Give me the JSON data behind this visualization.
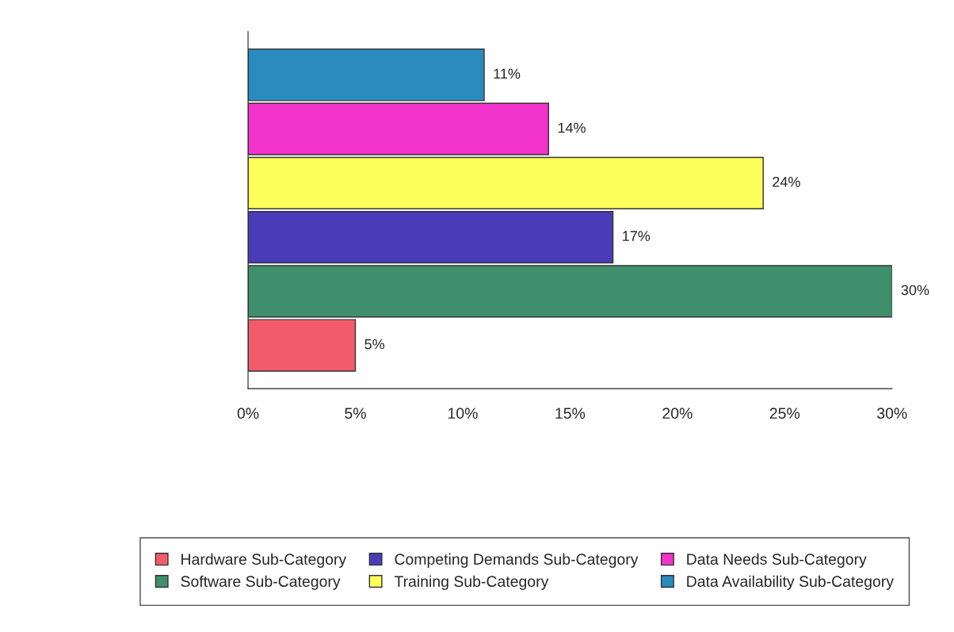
{
  "chart_data": {
    "type": "bar",
    "orientation": "horizontal",
    "categories": [
      null
    ],
    "series": [
      {
        "name": "Hardware Sub-Category",
        "color": "#f25c6a",
        "values": [
          5
        ],
        "value_labels": [
          "5%"
        ]
      },
      {
        "name": "Software Sub-Category",
        "color": "#3f8f6c",
        "values": [
          30
        ],
        "value_labels": [
          "30%"
        ]
      },
      {
        "name": "Competing Demands Sub-Category",
        "color": "#4a3cb8",
        "values": [
          17
        ],
        "value_labels": [
          "17%"
        ]
      },
      {
        "name": "Training Sub-Category",
        "color": "#ffff5a",
        "values": [
          24
        ],
        "value_labels": [
          "24%"
        ]
      },
      {
        "name": "Data Needs Sub-Category",
        "color": "#f233cc",
        "values": [
          14
        ],
        "value_labels": [
          "14%"
        ]
      },
      {
        "name": "Data Availability Sub-Category",
        "color": "#2a8bbf",
        "values": [
          11
        ],
        "value_labels": [
          "11%"
        ]
      }
    ],
    "xlim": [
      0,
      30
    ],
    "xticks": [
      {
        "value": 0,
        "label": "0%"
      },
      {
        "value": 5,
        "label": "5%"
      },
      {
        "value": 10,
        "label": "10%"
      },
      {
        "value": 15,
        "label": "15%"
      },
      {
        "value": 20,
        "label": "20%"
      },
      {
        "value": 25,
        "label": "25%"
      },
      {
        "value": 30,
        "label": "30%"
      }
    ],
    "legend": "bottom",
    "grid": false
  }
}
